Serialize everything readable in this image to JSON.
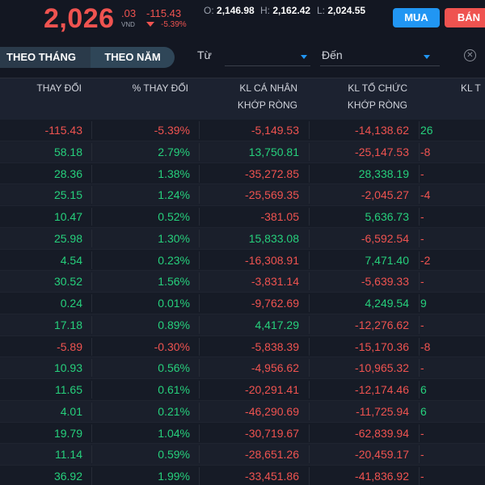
{
  "colors": {
    "positive": "#26d07c",
    "negative": "#ef5350",
    "buy": "#2196f3",
    "sell": "#ef5350"
  },
  "quote": {
    "price_main": "2,026",
    "price_decimal": ".03",
    "unit": "VND",
    "change": "-115.43",
    "change_pct": "-5.39%",
    "open_label": "O:",
    "open": "2,146.98",
    "high_label": "H:",
    "high": "2,162.42",
    "low_label": "L:",
    "low": "2,024.55"
  },
  "actions": {
    "buy_label": "MUA",
    "sell_label": "BÁN"
  },
  "filters": {
    "tab_month": "THEO THÁNG",
    "tab_year": "THEO NĂM",
    "from_label": "Từ",
    "to_label": "Đến",
    "clear_icon": "close-circle-icon"
  },
  "table": {
    "headers": {
      "change": "THAY ĐỔI",
      "change_pct": "% THAY ĐỔI",
      "retail_l1": "KL CÁ NHÂN",
      "retail_l2": "KHỚP RÒNG",
      "inst_l1": "KL TỔ CHỨC",
      "inst_l2": "KHỚP RÒNG",
      "col5_l1": "KL T"
    },
    "rows": [
      {
        "change": "-115.43",
        "pct": "-5.39%",
        "retail": "-5,149.53",
        "inst": "-14,138.62",
        "col5": "26",
        "s": [
          "neg",
          "neg",
          "neg",
          "neg",
          "pos"
        ]
      },
      {
        "change": "58.18",
        "pct": "2.79%",
        "retail": "13,750.81",
        "inst": "-25,147.53",
        "col5": "-8",
        "s": [
          "pos",
          "pos",
          "pos",
          "neg",
          "neg"
        ]
      },
      {
        "change": "28.36",
        "pct": "1.38%",
        "retail": "-35,272.85",
        "inst": "28,338.19",
        "col5": "-",
        "s": [
          "pos",
          "pos",
          "neg",
          "pos",
          "neg"
        ]
      },
      {
        "change": "25.15",
        "pct": "1.24%",
        "retail": "-25,569.35",
        "inst": "-2,045.27",
        "col5": "-4",
        "s": [
          "pos",
          "pos",
          "neg",
          "neg",
          "neg"
        ]
      },
      {
        "change": "10.47",
        "pct": "0.52%",
        "retail": "-381.05",
        "inst": "5,636.73",
        "col5": "-",
        "s": [
          "pos",
          "pos",
          "neg",
          "pos",
          "neg"
        ]
      },
      {
        "change": "25.98",
        "pct": "1.30%",
        "retail": "15,833.08",
        "inst": "-6,592.54",
        "col5": "-",
        "s": [
          "pos",
          "pos",
          "pos",
          "neg",
          "neg"
        ]
      },
      {
        "change": "4.54",
        "pct": "0.23%",
        "retail": "-16,308.91",
        "inst": "7,471.40",
        "col5": "-2",
        "s": [
          "pos",
          "pos",
          "neg",
          "pos",
          "neg"
        ]
      },
      {
        "change": "30.52",
        "pct": "1.56%",
        "retail": "-3,831.14",
        "inst": "-5,639.33",
        "col5": "-",
        "s": [
          "pos",
          "pos",
          "neg",
          "neg",
          "neg"
        ]
      },
      {
        "change": "0.24",
        "pct": "0.01%",
        "retail": "-9,762.69",
        "inst": "4,249.54",
        "col5": "9",
        "s": [
          "pos",
          "pos",
          "neg",
          "pos",
          "pos"
        ]
      },
      {
        "change": "17.18",
        "pct": "0.89%",
        "retail": "4,417.29",
        "inst": "-12,276.62",
        "col5": "-",
        "s": [
          "pos",
          "pos",
          "pos",
          "neg",
          "neg"
        ]
      },
      {
        "change": "-5.89",
        "pct": "-0.30%",
        "retail": "-5,838.39",
        "inst": "-15,170.36",
        "col5": "-8",
        "s": [
          "neg",
          "neg",
          "neg",
          "neg",
          "neg"
        ]
      },
      {
        "change": "10.93",
        "pct": "0.56%",
        "retail": "-4,956.62",
        "inst": "-10,965.32",
        "col5": "-",
        "s": [
          "pos",
          "pos",
          "neg",
          "neg",
          "neg"
        ]
      },
      {
        "change": "11.65",
        "pct": "0.61%",
        "retail": "-20,291.41",
        "inst": "-12,174.46",
        "col5": "6",
        "s": [
          "pos",
          "pos",
          "neg",
          "neg",
          "pos"
        ]
      },
      {
        "change": "4.01",
        "pct": "0.21%",
        "retail": "-46,290.69",
        "inst": "-11,725.94",
        "col5": "6",
        "s": [
          "pos",
          "pos",
          "neg",
          "neg",
          "pos"
        ]
      },
      {
        "change": "19.79",
        "pct": "1.04%",
        "retail": "-30,719.67",
        "inst": "-62,839.94",
        "col5": "-",
        "s": [
          "pos",
          "pos",
          "neg",
          "neg",
          "neg"
        ]
      },
      {
        "change": "11.14",
        "pct": "0.59%",
        "retail": "-28,651.26",
        "inst": "-20,459.17",
        "col5": "-",
        "s": [
          "pos",
          "pos",
          "neg",
          "neg",
          "neg"
        ]
      },
      {
        "change": "36.92",
        "pct": "1.99%",
        "retail": "-33,451.86",
        "inst": "-41,836.92",
        "col5": "-",
        "s": [
          "pos",
          "pos",
          "neg",
          "neg",
          "neg"
        ]
      }
    ]
  }
}
